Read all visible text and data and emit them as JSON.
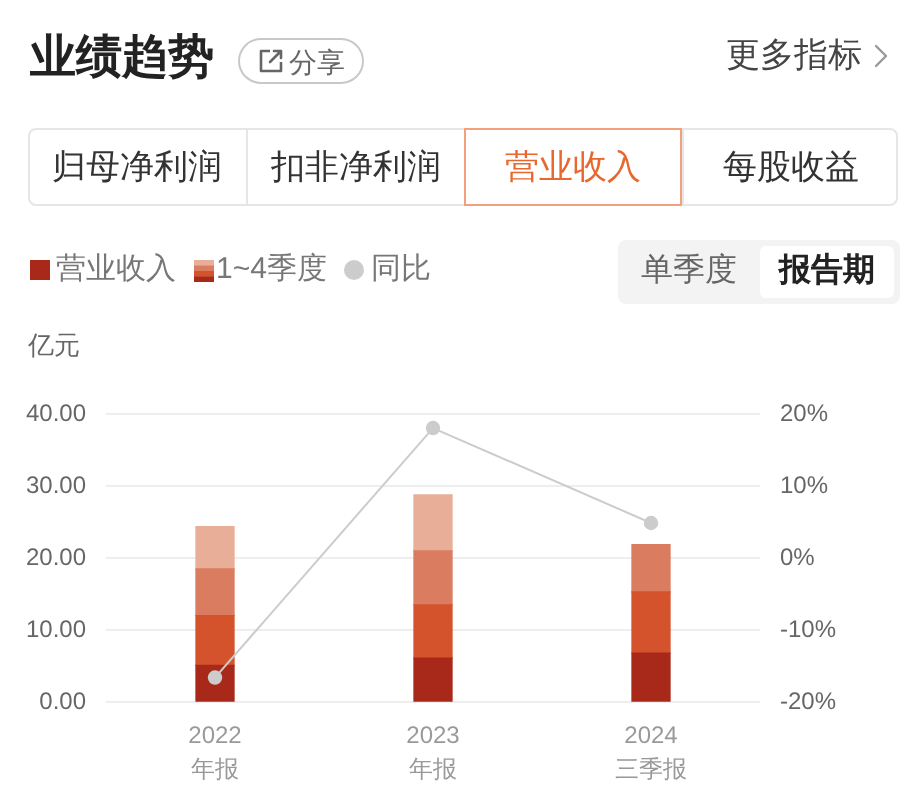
{
  "chart_data": {
    "type": "bar",
    "title": "业绩趋势",
    "ylabel": "亿元",
    "categories": [
      "2022 年报",
      "2023 年报",
      "2024 三季报"
    ],
    "stacked": true,
    "series": [
      {
        "name": "营业收入",
        "color": "#a8291a",
        "values": [
          5.1,
          6.1,
          6.8
        ]
      },
      {
        "color": "#d4532d",
        "values": [
          6.9,
          7.4,
          8.5
        ]
      },
      {
        "color": "#d97c5f",
        "values": [
          6.5,
          7.5,
          6.6
        ]
      },
      {
        "color": "#e9ae98",
        "values": [
          5.9,
          7.8,
          null
        ]
      },
      {
        "name": "同比",
        "type": "line",
        "axis": "y2",
        "color": "#cccccc",
        "values": [
          -16.6,
          18.1,
          4.9
        ]
      }
    ],
    "ylim": [
      0,
      40
    ],
    "yticks": [
      {
        "value": 0,
        "label": "0.00"
      },
      {
        "value": 10,
        "label": "10.00"
      },
      {
        "value": 20,
        "label": "20.00"
      },
      {
        "value": 30,
        "label": "30.00"
      },
      {
        "value": 40,
        "label": "40.00"
      }
    ],
    "y2lim": [
      -20,
      20
    ],
    "y2ticks": [
      {
        "value": -20,
        "label": "-20%"
      },
      {
        "value": -10,
        "label": "-10%"
      },
      {
        "value": 0,
        "label": "0%"
      },
      {
        "value": 10,
        "label": "10%"
      },
      {
        "value": 20,
        "label": "20%"
      }
    ],
    "grid": "y",
    "legend": "top left",
    "marker": "circle",
    "annotations": [
      "分享",
      "更多指标",
      "归母净利润",
      "扣非净利润",
      "营业收入",
      "每股收益",
      "单季度",
      "报告期",
      "1~4季度"
    ]
  }
}
